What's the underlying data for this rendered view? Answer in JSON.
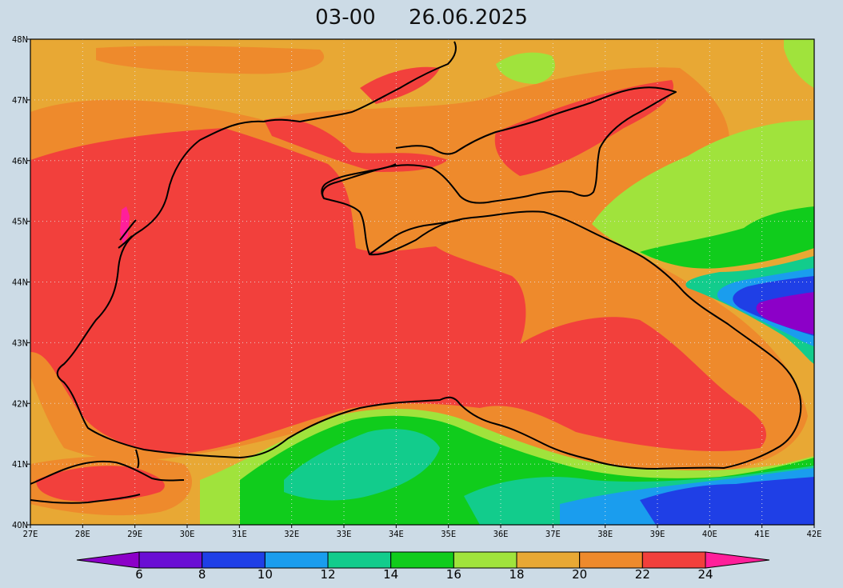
{
  "title": {
    "time": "03-00",
    "date": "26.06.2025"
  },
  "map": {
    "lon_range": [
      27,
      42
    ],
    "lat_range": [
      40,
      48
    ],
    "lat_labels": [
      "48N",
      "47N",
      "46N",
      "45N",
      "44N",
      "43N",
      "42N",
      "41N",
      "40N"
    ],
    "lon_labels": [
      "27E",
      "28E",
      "29E",
      "30E",
      "31E",
      "32E",
      "33E",
      "34E",
      "35E",
      "36E",
      "37E",
      "38E",
      "39E",
      "40E",
      "41E",
      "42E"
    ],
    "grid": "dotted",
    "coastline_color": "#000000"
  },
  "colorbar": {
    "tick_labels": [
      "6",
      "8",
      "10",
      "12",
      "14",
      "16",
      "18",
      "20",
      "22",
      "24"
    ],
    "colors": [
      "#8c00c8",
      "#6a0fd4",
      "#1f3fe6",
      "#1a9dee",
      "#12cc8c",
      "#10cc1c",
      "#a0e33c",
      "#e8a834",
      "#ee8a2c",
      "#f2403c",
      "#ff1f9a"
    ]
  },
  "palette": {
    "purple": "#8c00c8",
    "blue": "#1f3fe6",
    "sky": "#1a9dee",
    "teal": "#12cc8c",
    "green": "#10cc1c",
    "lime": "#a0e33c",
    "gold": "#e8a834",
    "orange": "#ee8a2c",
    "red": "#f2403c",
    "magenta": "#ff1f9a"
  }
}
